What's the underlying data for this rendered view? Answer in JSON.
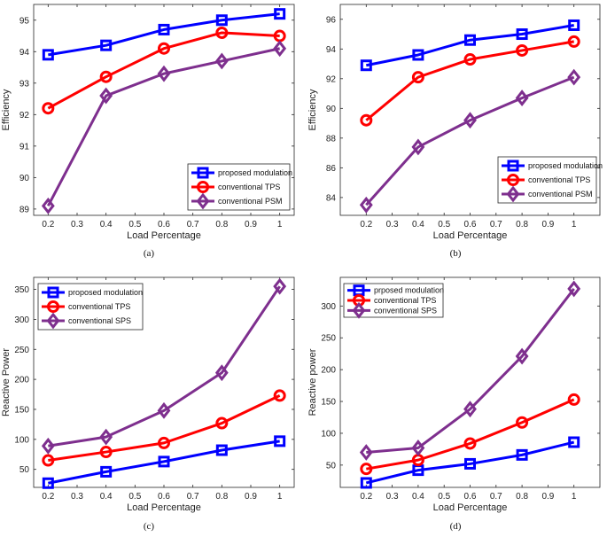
{
  "chart_data": [
    {
      "type": "line",
      "caption": "(a)",
      "xlabel": "Load Percentage",
      "ylabel": "Efficiency",
      "xlim": [
        0.15,
        1.05
      ],
      "ylim": [
        88.8,
        95.5
      ],
      "xticks": [
        "0.2",
        "0.3",
        "0.4",
        "0.5",
        "0.6",
        "0.7",
        "0.8",
        "0.9",
        "1"
      ],
      "yticks": [
        "89",
        "90",
        "91",
        "92",
        "93",
        "94",
        "95"
      ],
      "x": [
        0.2,
        0.4,
        0.6,
        0.8,
        1.0
      ],
      "legend_position": "bottom-right",
      "series": [
        {
          "name": "proposed modulation",
          "color": "#0000ff",
          "marker": "square",
          "values": [
            93.9,
            94.2,
            94.7,
            95.0,
            95.2
          ]
        },
        {
          "name": "conventional TPS",
          "color": "#ff0000",
          "marker": "circle",
          "values": [
            92.2,
            93.2,
            94.1,
            94.6,
            94.5
          ]
        },
        {
          "name": "conventional PSM",
          "color": "#7e2f8e",
          "marker": "diamond",
          "values": [
            89.1,
            92.6,
            93.3,
            93.7,
            94.1
          ]
        }
      ]
    },
    {
      "type": "line",
      "caption": "(b)",
      "xlabel": "Load Percentage",
      "ylabel": "Efficiency",
      "xlim": [
        0.1,
        1.1
      ],
      "ylim": [
        82.8,
        97.0
      ],
      "xticks": [
        "0.2",
        "0.3",
        "0.4",
        "0.5",
        "0.6",
        "0.7",
        "0.8",
        "0.9",
        "1"
      ],
      "yticks": [
        "84",
        "86",
        "88",
        "90",
        "92",
        "94",
        "96"
      ],
      "x": [
        0.2,
        0.4,
        0.6,
        0.8,
        1.0
      ],
      "legend_position": "bottom-right",
      "series": [
        {
          "name": "proposed modulation",
          "color": "#0000ff",
          "marker": "square",
          "values": [
            92.9,
            93.6,
            94.6,
            95.0,
            95.6
          ]
        },
        {
          "name": "conventional TPS",
          "color": "#ff0000",
          "marker": "circle",
          "values": [
            89.2,
            92.1,
            93.3,
            93.9,
            94.5
          ]
        },
        {
          "name": "conventional PSM",
          "color": "#7e2f8e",
          "marker": "diamond",
          "values": [
            83.5,
            87.4,
            89.2,
            90.7,
            92.1
          ]
        }
      ]
    },
    {
      "type": "line",
      "caption": "(c)",
      "xlabel": "Load Percentage",
      "ylabel": "Reactive Power",
      "xlim": [
        0.15,
        1.05
      ],
      "ylim": [
        20,
        370
      ],
      "xticks": [
        "0.2",
        "0.3",
        "0.4",
        "0.5",
        "0.6",
        "0.7",
        "0.8",
        "0.9",
        "1"
      ],
      "yticks": [
        "50",
        "100",
        "150",
        "200",
        "250",
        "300",
        "350"
      ],
      "x": [
        0.2,
        0.4,
        0.6,
        0.8,
        1.0
      ],
      "legend_position": "top-left",
      "series": [
        {
          "name": "proposed modulation",
          "color": "#0000ff",
          "marker": "square",
          "values": [
            27,
            46,
            63,
            82,
            97
          ]
        },
        {
          "name": "conventional TPS",
          "color": "#ff0000",
          "marker": "circle",
          "values": [
            65,
            79,
            94,
            127,
            173
          ]
        },
        {
          "name": "conventional SPS",
          "color": "#7e2f8e",
          "marker": "diamond",
          "values": [
            89,
            104,
            148,
            211,
            355
          ]
        }
      ]
    },
    {
      "type": "line",
      "caption": "(d)",
      "xlabel": "Load Percentage",
      "ylabel": "Reactive power",
      "xlim": [
        0.1,
        1.1
      ],
      "ylim": [
        15,
        345
      ],
      "xticks": [
        "0.2",
        "0.3",
        "0.4",
        "0.5",
        "0.6",
        "0.7",
        "0.8",
        "0.9",
        "1"
      ],
      "yticks": [
        "50",
        "100",
        "150",
        "200",
        "250",
        "300"
      ],
      "x": [
        0.2,
        0.4,
        0.6,
        0.8,
        1.0
      ],
      "legend_position": "top-left",
      "series": [
        {
          "name": "prposed modulation",
          "color": "#0000ff",
          "marker": "square",
          "values": [
            22,
            42,
            52,
            66,
            86
          ]
        },
        {
          "name": "conventional TPS",
          "color": "#ff0000",
          "marker": "circle",
          "values": [
            44,
            58,
            84,
            117,
            153
          ]
        },
        {
          "name": "conventional SPS",
          "color": "#7e2f8e",
          "marker": "diamond",
          "values": [
            70,
            77,
            138,
            221,
            327
          ]
        }
      ]
    }
  ]
}
